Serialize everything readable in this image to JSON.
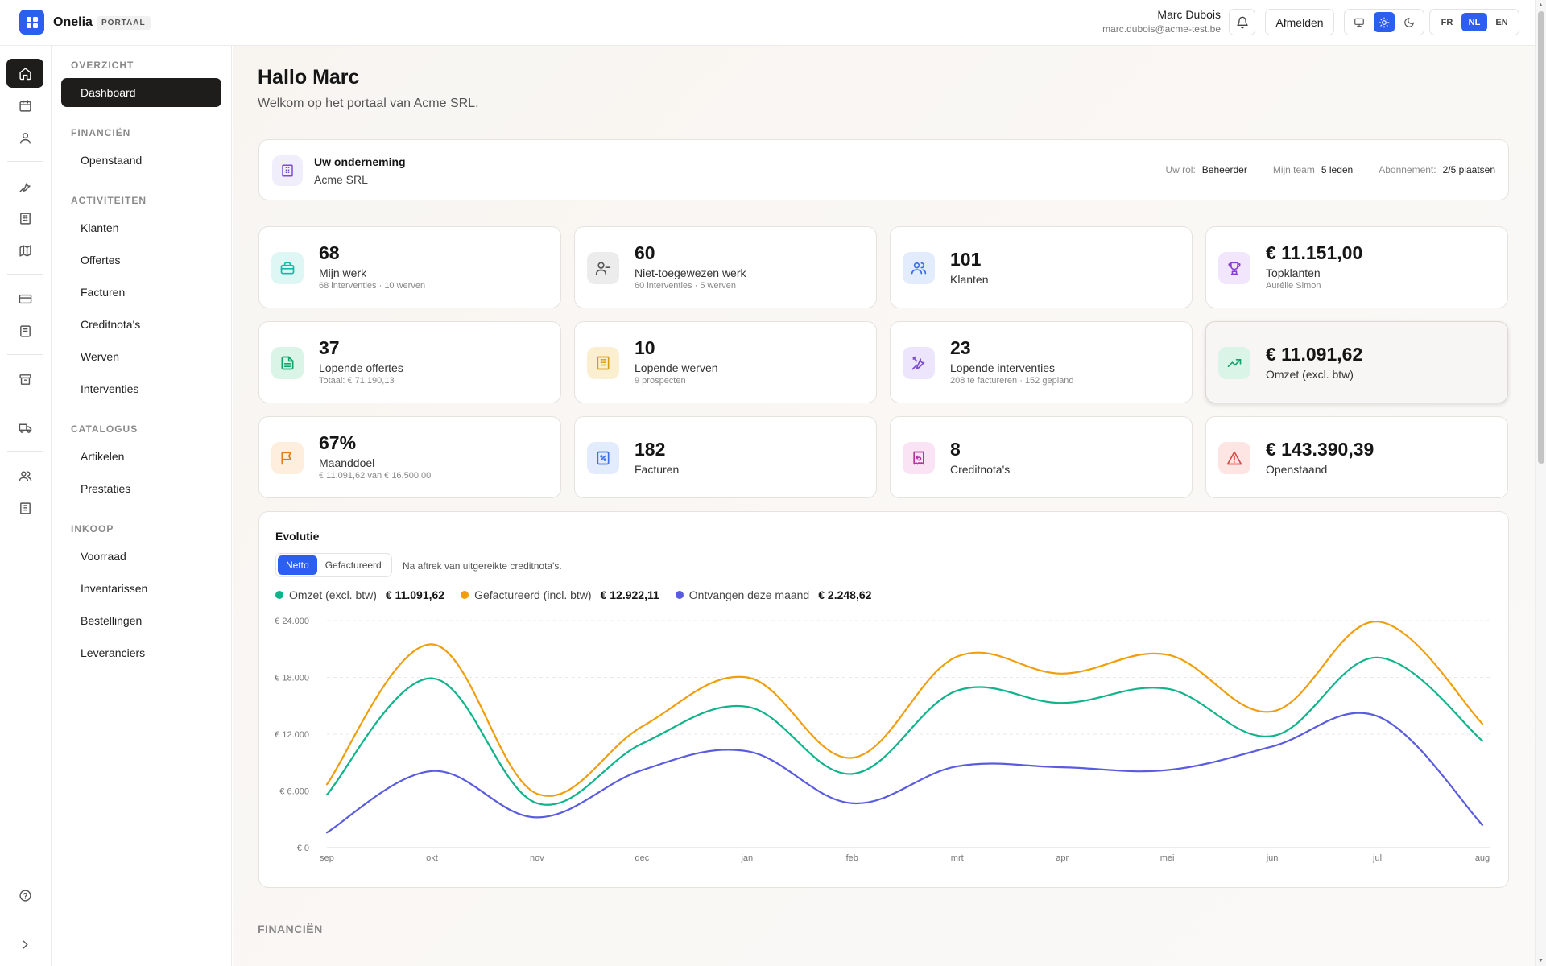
{
  "header": {
    "app_name": "Onelia",
    "app_badge": "PORTAAL",
    "user_name": "Marc Dubois",
    "user_email": "marc.dubois@acme-test.be",
    "logout_label": "Afmelden",
    "theme_options": [
      "monitor-icon",
      "sun-icon",
      "moon-icon"
    ],
    "theme_active": "sun-icon",
    "languages": [
      "FR",
      "NL",
      "EN"
    ],
    "language_active": "NL",
    "accent_color": "#2c5ef0"
  },
  "rail": {
    "icons": [
      "home-icon",
      "calendar-icon",
      "user-icon",
      "wrench-icon",
      "building-icon",
      "map-icon",
      "credit-card-icon",
      "receipt-icon",
      "archive-icon",
      "truck-icon",
      "users-icon",
      "office-icon",
      "help-icon",
      "chevron-right-icon"
    ]
  },
  "nav": {
    "sections": [
      {
        "title": "OVERZICHT",
        "items": [
          "Dashboard"
        ]
      },
      {
        "title": "FINANCIËN",
        "items": [
          "Openstaand"
        ]
      },
      {
        "title": "ACTIVITEITEN",
        "items": [
          "Klanten",
          "Offertes",
          "Facturen",
          "Creditnota's",
          "Werven",
          "Interventies"
        ]
      },
      {
        "title": "CATALOGUS",
        "items": [
          "Artikelen",
          "Prestaties"
        ]
      },
      {
        "title": "INKOOP",
        "items": [
          "Voorraad",
          "Inventarissen",
          "Bestellingen",
          "Leveranciers"
        ]
      }
    ],
    "active_item": "Dashboard"
  },
  "main": {
    "greeting": "Hallo Marc",
    "welcome": "Welkom op het portaal van Acme SRL.",
    "company": {
      "title": "Uw onderneming",
      "name": "Acme SRL",
      "role_label": "Uw rol:",
      "role_value": "Beheerder",
      "team_label": "Mijn team",
      "team_value": "5 leden",
      "subscription_label": "Abonnement:",
      "subscription_value": "2/5 plaatsen"
    },
    "stats": [
      {
        "value": "68",
        "label": "Mijn werk",
        "sub": "68 interventies · 10 werven",
        "icon": "briefcase-icon",
        "color": "#14b8a6",
        "bg": "#dff7f4"
      },
      {
        "value": "60",
        "label": "Niet-toegewezen werk",
        "sub": "60 interventies · 5 werven",
        "icon": "user-minus-icon",
        "color": "#555555",
        "bg": "#ececec"
      },
      {
        "value": "101",
        "label": "Klanten",
        "sub": "",
        "icon": "users-icon",
        "color": "#3b6fe8",
        "bg": "#e3ecfd"
      },
      {
        "value": "€ 11.151,00",
        "label": "Topklanten",
        "sub": "Aurélie Simon",
        "icon": "trophy-icon",
        "color": "#8a3fd1",
        "bg": "#f1e6fb"
      },
      {
        "value": "37",
        "label": "Lopende offertes",
        "sub": "Totaal: € 71.190,13",
        "icon": "file-text-icon",
        "color": "#11a46b",
        "bg": "#daf5e8"
      },
      {
        "value": "10",
        "label": "Lopende werven",
        "sub": "9 prospecten",
        "icon": "building-icon",
        "color": "#d69c12",
        "bg": "#fbefd2"
      },
      {
        "value": "23",
        "label": "Lopende interventies",
        "sub": "208 te factureren · 152 gepland",
        "icon": "tools-icon",
        "color": "#7c4bd6",
        "bg": "#ede5fb"
      },
      {
        "value": "€ 11.091,62",
        "label": "Omzet (excl. btw)",
        "sub": "",
        "icon": "trending-up-icon",
        "color": "#11a46b",
        "bg": "#daf5e8"
      },
      {
        "value": "67%",
        "label": "Maanddoel",
        "sub": "€ 11.091,62 van € 16.500,00",
        "icon": "flag-icon",
        "color": "#e07b1a",
        "bg": "#fdeedd"
      },
      {
        "value": "182",
        "label": "Facturen",
        "sub": "",
        "icon": "receipt-percent-icon",
        "color": "#3b6fe8",
        "bg": "#e3ecfd"
      },
      {
        "value": "8",
        "label": "Creditnota's",
        "sub": "",
        "icon": "receipt-refund-icon",
        "color": "#b8359b",
        "bg": "#f9e3f4"
      },
      {
        "value": "€ 143.390,39",
        "label": "Openstaand",
        "sub": "",
        "icon": "alert-triangle-icon",
        "color": "#d9473f",
        "bg": "#fde5e4"
      }
    ],
    "chart": {
      "title": "Evolutie",
      "tabs": [
        "Netto",
        "Gefactureerd"
      ],
      "active_tab": "Netto",
      "note": "Na aftrek van uitgereikte creditnota's.",
      "legend": [
        {
          "label": "Omzet (excl. btw)",
          "value": "€ 11.091,62",
          "color": "#10b38a"
        },
        {
          "label": "Gefactureerd (incl. btw)",
          "value": "€ 12.922,11",
          "color": "#f09e0c"
        },
        {
          "label": "Ontvangen deze maand",
          "value": "€ 2.248,62",
          "color": "#5a5ce0"
        }
      ]
    },
    "bottom_section": "FINANCIËN"
  },
  "chart_data": {
    "type": "line",
    "title": "Evolutie",
    "categories": [
      "sep",
      "okt",
      "nov",
      "dec",
      "jan",
      "feb",
      "mrt",
      "apr",
      "mei",
      "jun",
      "jul",
      "aug"
    ],
    "ylim": [
      0,
      24000
    ],
    "yticks": [
      "€ 0",
      "€ 6.000",
      "€ 12.000",
      "€ 18.000",
      "€ 24.000"
    ],
    "grid": true,
    "series": [
      {
        "name": "Omzet (excl. btw)",
        "color": "#10b38a",
        "values": [
          5600,
          17900,
          4700,
          11000,
          14900,
          7800,
          16600,
          15300,
          16800,
          11800,
          20100,
          11300
        ]
      },
      {
        "name": "Gefactureerd (incl. btw)",
        "color": "#f09e0c",
        "values": [
          6700,
          21500,
          5700,
          12800,
          18000,
          9500,
          20200,
          18400,
          20400,
          14400,
          23900,
          13100
        ]
      },
      {
        "name": "Ontvangen deze maand",
        "color": "#5a5ce0",
        "values": [
          1600,
          8100,
          3200,
          8200,
          10200,
          4700,
          8600,
          8500,
          8200,
          10700,
          13900,
          2400
        ]
      }
    ]
  }
}
